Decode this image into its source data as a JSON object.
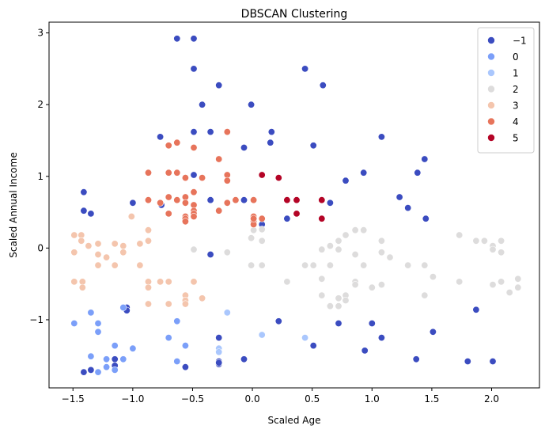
{
  "chart_data": {
    "type": "scatter",
    "title": "DBSCAN Clustering",
    "xlabel": "Scaled Age",
    "ylabel": "Scaled Annual Income",
    "xlim": [
      -1.7,
      2.4
    ],
    "ylim": [
      -1.95,
      3.15
    ],
    "xticks": [
      -1.5,
      -1.0,
      -0.5,
      0.0,
      0.5,
      1.0,
      1.5,
      2.0
    ],
    "xtick_labels": [
      "−1.5",
      "−1.0",
      "−0.5",
      "0.0",
      "0.5",
      "1.0",
      "1.5",
      "2.0"
    ],
    "yticks": [
      -1,
      0,
      1,
      2,
      3
    ],
    "ytick_labels": [
      "−1",
      "0",
      "1",
      "2",
      "3"
    ],
    "grid": false,
    "legend_position": "top-right",
    "series": [
      {
        "name": "−1",
        "color": "#3b4cc0",
        "points": [
          [
            -0.63,
            2.92
          ],
          [
            -0.49,
            2.92
          ],
          [
            -0.49,
            2.5
          ],
          [
            -0.28,
            2.27
          ],
          [
            -0.42,
            2.0
          ],
          [
            -0.77,
            1.55
          ],
          [
            -0.49,
            1.62
          ],
          [
            -0.35,
            1.62
          ],
          [
            -0.07,
            1.4
          ],
          [
            -0.01,
            2.0
          ],
          [
            0.16,
            1.62
          ],
          [
            0.15,
            1.47
          ],
          [
            0.44,
            2.5
          ],
          [
            0.51,
            1.43
          ],
          [
            0.59,
            2.27
          ],
          [
            1.08,
            1.55
          ],
          [
            1.44,
            1.24
          ],
          [
            1.38,
            1.05
          ],
          [
            0.93,
            1.05
          ],
          [
            0.78,
            0.94
          ],
          [
            1.23,
            0.71
          ],
          [
            1.3,
            0.56
          ],
          [
            1.45,
            0.41
          ],
          [
            0.29,
            0.41
          ],
          [
            0.65,
            0.63
          ],
          [
            0.08,
            0.33
          ],
          [
            -1.41,
            0.78
          ],
          [
            -1.35,
            0.48
          ],
          [
            -1.41,
            0.52
          ],
          [
            -1.0,
            0.63
          ],
          [
            -0.49,
            1.02
          ],
          [
            -0.76,
            0.6
          ],
          [
            -0.63,
            0.67
          ],
          [
            -0.35,
            0.67
          ],
          [
            -0.35,
            -0.09
          ],
          [
            -0.07,
            0.67
          ],
          [
            -1.05,
            -0.83
          ],
          [
            -1.05,
            -0.87
          ],
          [
            -1.15,
            -1.55
          ],
          [
            -1.15,
            -1.64
          ],
          [
            -1.41,
            -1.73
          ],
          [
            -1.35,
            -1.7
          ],
          [
            -0.28,
            -1.25
          ],
          [
            -0.28,
            -1.58
          ],
          [
            -0.28,
            -1.62
          ],
          [
            -0.28,
            -1.6
          ],
          [
            -0.56,
            -1.66
          ],
          [
            -0.07,
            -1.55
          ],
          [
            0.22,
            -1.02
          ],
          [
            0.51,
            -1.36
          ],
          [
            0.72,
            -1.05
          ],
          [
            1.0,
            -1.05
          ],
          [
            1.08,
            -1.25
          ],
          [
            0.94,
            -1.43
          ],
          [
            1.51,
            -1.17
          ],
          [
            1.37,
            -1.55
          ],
          [
            1.8,
            -1.58
          ],
          [
            2.01,
            -1.58
          ],
          [
            1.87,
            -0.86
          ]
        ]
      },
      {
        "name": "0",
        "color": "#7b9ff9",
        "points": [
          [
            -1.49,
            -1.05
          ],
          [
            -1.35,
            -0.9
          ],
          [
            -1.29,
            -1.05
          ],
          [
            -1.29,
            -1.17
          ],
          [
            -1.35,
            -1.51
          ],
          [
            -1.29,
            -1.73
          ],
          [
            -1.22,
            -1.55
          ],
          [
            -1.22,
            -1.66
          ],
          [
            -1.08,
            -1.55
          ],
          [
            -1.0,
            -1.4
          ],
          [
            -1.15,
            -1.7
          ],
          [
            -1.15,
            -1.36
          ],
          [
            -0.7,
            -1.25
          ],
          [
            -0.63,
            -1.02
          ],
          [
            -0.56,
            -1.36
          ],
          [
            -0.63,
            -1.58
          ],
          [
            -1.08,
            -0.83
          ]
        ]
      },
      {
        "name": "1",
        "color": "#aac7fd",
        "points": [
          [
            -0.21,
            -0.9
          ],
          [
            -0.28,
            -1.4
          ],
          [
            -0.28,
            -1.45
          ],
          [
            0.08,
            -1.21
          ],
          [
            0.44,
            -1.25
          ]
        ]
      },
      {
        "name": "2",
        "color": "#dddcdc",
        "points": [
          [
            -0.49,
            -0.02
          ],
          [
            -0.21,
            -0.06
          ],
          [
            0.01,
            0.25
          ],
          [
            -0.01,
            0.14
          ],
          [
            0.08,
            0.26
          ],
          [
            0.08,
            0.1
          ],
          [
            -0.01,
            -0.24
          ],
          [
            0.08,
            -0.24
          ],
          [
            0.29,
            -0.47
          ],
          [
            0.44,
            -0.24
          ],
          [
            0.51,
            -0.24
          ],
          [
            0.58,
            -0.02
          ],
          [
            0.58,
            -0.43
          ],
          [
            0.58,
            -0.66
          ],
          [
            0.65,
            0.03
          ],
          [
            0.65,
            -0.24
          ],
          [
            0.65,
            -0.81
          ],
          [
            0.72,
            0.1
          ],
          [
            0.72,
            -0.02
          ],
          [
            0.72,
            -0.7
          ],
          [
            0.72,
            -0.81
          ],
          [
            0.78,
            0.18
          ],
          [
            0.78,
            -0.66
          ],
          [
            0.78,
            -0.73
          ],
          [
            0.86,
            0.25
          ],
          [
            0.86,
            -0.09
          ],
          [
            0.86,
            -0.47
          ],
          [
            0.86,
            -0.51
          ],
          [
            0.93,
            0.25
          ],
          [
            0.93,
            -0.24
          ],
          [
            1.0,
            -0.55
          ],
          [
            1.08,
            0.1
          ],
          [
            1.08,
            -0.06
          ],
          [
            1.08,
            -0.51
          ],
          [
            1.15,
            -0.13
          ],
          [
            1.3,
            -0.24
          ],
          [
            1.44,
            -0.24
          ],
          [
            1.44,
            -0.66
          ],
          [
            1.51,
            -0.4
          ],
          [
            1.73,
            0.18
          ],
          [
            1.73,
            -0.47
          ],
          [
            1.87,
            0.1
          ],
          [
            1.94,
            0.1
          ],
          [
            2.01,
            0.03
          ],
          [
            2.01,
            -0.02
          ],
          [
            2.01,
            -0.51
          ],
          [
            2.08,
            0.1
          ],
          [
            2.08,
            -0.06
          ],
          [
            2.08,
            -0.47
          ],
          [
            2.15,
            -0.62
          ],
          [
            2.22,
            -0.43
          ],
          [
            2.22,
            -0.55
          ]
        ]
      },
      {
        "name": "3",
        "color": "#f4c5ad",
        "points": [
          [
            -1.49,
            0.18
          ],
          [
            -1.43,
            0.18
          ],
          [
            -1.43,
            0.1
          ],
          [
            -1.49,
            -0.06
          ],
          [
            -1.49,
            -0.47
          ],
          [
            -1.42,
            -0.47
          ],
          [
            -1.42,
            -0.55
          ],
          [
            -1.37,
            0.03
          ],
          [
            -1.29,
            0.06
          ],
          [
            -1.29,
            -0.24
          ],
          [
            -1.29,
            -0.09
          ],
          [
            -1.22,
            -0.13
          ],
          [
            -1.15,
            0.06
          ],
          [
            -1.15,
            -0.24
          ],
          [
            -1.08,
            -0.06
          ],
          [
            -1.08,
            0.03
          ],
          [
            -1.01,
            0.44
          ],
          [
            -0.94,
            0.06
          ],
          [
            -0.94,
            -0.24
          ],
          [
            -0.87,
            0.25
          ],
          [
            -0.87,
            0.1
          ],
          [
            -0.87,
            -0.47
          ],
          [
            -0.87,
            -0.55
          ],
          [
            -0.87,
            -0.78
          ],
          [
            -0.77,
            -0.47
          ],
          [
            -0.7,
            -0.47
          ],
          [
            -0.7,
            -0.78
          ],
          [
            -0.56,
            -0.66
          ],
          [
            -0.56,
            -0.73
          ],
          [
            -0.56,
            -0.78
          ],
          [
            -0.49,
            -0.47
          ],
          [
            -0.42,
            -0.7
          ]
        ]
      },
      {
        "name": "4",
        "color": "#e7745b",
        "points": [
          [
            -0.87,
            1.05
          ],
          [
            -0.7,
            1.43
          ],
          [
            -0.63,
            1.47
          ],
          [
            -0.49,
            1.4
          ],
          [
            -0.42,
            0.98
          ],
          [
            -0.7,
            1.05
          ],
          [
            -0.63,
            1.05
          ],
          [
            -0.56,
            0.98
          ],
          [
            -0.28,
            1.24
          ],
          [
            -0.21,
            1.62
          ],
          [
            -0.21,
            1.02
          ],
          [
            -0.21,
            0.94
          ],
          [
            -0.49,
            0.78
          ],
          [
            -0.56,
            0.71
          ],
          [
            -0.7,
            0.71
          ],
          [
            -0.63,
            0.67
          ],
          [
            -0.87,
            0.67
          ],
          [
            -0.77,
            0.63
          ],
          [
            -0.56,
            0.63
          ],
          [
            -0.49,
            0.6
          ],
          [
            -0.49,
            0.52
          ],
          [
            -0.49,
            0.48
          ],
          [
            -0.49,
            0.44
          ],
          [
            -0.56,
            0.44
          ],
          [
            -0.56,
            0.41
          ],
          [
            -0.56,
            0.37
          ],
          [
            -0.7,
            0.48
          ],
          [
            -0.28,
            0.52
          ],
          [
            -0.21,
            0.63
          ],
          [
            -0.14,
            0.67
          ],
          [
            0.01,
            0.67
          ],
          [
            0.01,
            0.37
          ],
          [
            0.01,
            0.33
          ],
          [
            0.01,
            0.44
          ],
          [
            0.01,
            0.41
          ],
          [
            0.08,
            0.41
          ]
        ]
      },
      {
        "name": "5",
        "color": "#b40426",
        "points": [
          [
            0.08,
            1.02
          ],
          [
            0.22,
            0.98
          ],
          [
            0.29,
            0.67
          ],
          [
            0.37,
            0.67
          ],
          [
            0.37,
            0.48
          ],
          [
            0.58,
            0.67
          ],
          [
            0.58,
            0.41
          ]
        ]
      }
    ]
  }
}
